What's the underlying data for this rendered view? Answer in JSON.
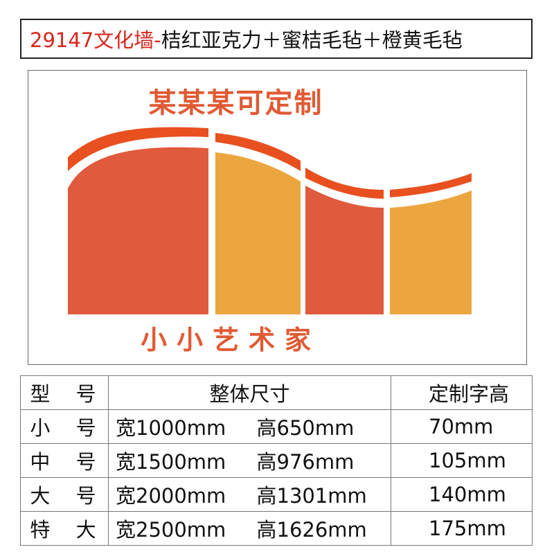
{
  "title": {
    "code": "29147文化墙-",
    "description": "桔红亚克力＋蜜桔毛毡＋橙黄毛毡"
  },
  "preview": {
    "heading": "某某某可定制",
    "subheading": "小小艺术家",
    "colors": {
      "orange_red": "#e05a3e",
      "amber": "#eca63f",
      "text": "#e05a33"
    }
  },
  "spec_table": {
    "headers": {
      "model": "型 号",
      "size": "整体尺寸",
      "text_height": "定制字高"
    },
    "rows": [
      {
        "model": "小 号",
        "width": "宽1000mm",
        "height": "高650mm",
        "text_height": "70mm"
      },
      {
        "model": "中 号",
        "width": "宽1500mm",
        "height": "高976mm",
        "text_height": "105mm"
      },
      {
        "model": "大 号",
        "width": "宽2000mm",
        "height": "高1301mm",
        "text_height": "140mm"
      },
      {
        "model": "特 大",
        "width": "宽2500mm",
        "height": "高1626mm",
        "text_height": "175mm"
      }
    ]
  }
}
